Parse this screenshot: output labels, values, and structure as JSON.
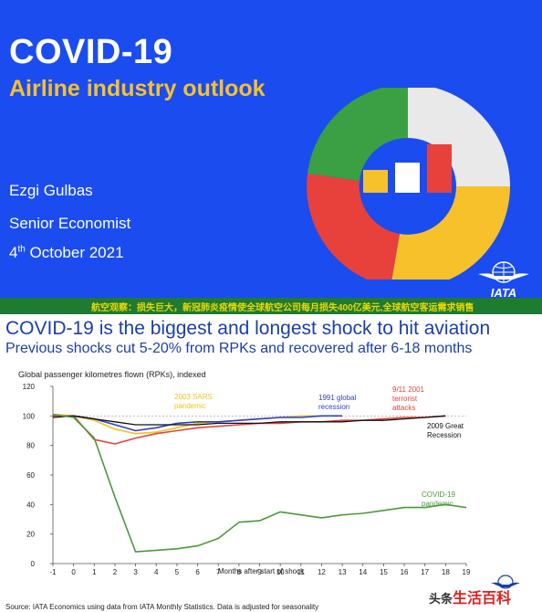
{
  "slide": {
    "title": "COVID-19",
    "subtitle": "Airline industry outlook",
    "author": "Ezgi Gulbas",
    "role": "Senior Economist",
    "date_day": "4",
    "date_suffix": "th",
    "date_rest": " October 2021",
    "logo_text": "IATA",
    "colors": {
      "background": "#1a4cf0",
      "accent": "#f6c12b"
    }
  },
  "banner": {
    "text": "航空观察：损失巨大，新冠肺炎疫情使全球航空公司每月损失400亿美元,全球航空客运需求销售"
  },
  "heading": "COVID-19 is the biggest and longest shock to hit aviation",
  "subheading": "Previous shocks cut 5-20% from RPKs and recovered after 6-18 months",
  "source": "Source: IATA Economics using data from IATA Monthly Statistics. Data is adjusted for seasonality",
  "watermark": {
    "part1": "头条",
    "part2": "生活百科"
  },
  "chart_data": {
    "type": "line",
    "ylabel": "Global passenger kilometres flown (RPKs), indexed",
    "xlabel": "Months after start of shock",
    "ylim": [
      0,
      120
    ],
    "xlim": [
      -1,
      19
    ],
    "yticks": [
      0,
      20,
      40,
      60,
      80,
      100,
      120
    ],
    "xticks": [
      -1,
      0,
      1,
      2,
      3,
      4,
      5,
      6,
      7,
      8,
      9,
      10,
      11,
      12,
      13,
      14,
      15,
      16,
      17,
      18,
      19
    ],
    "series": [
      {
        "name": "2003 SARS pandemic",
        "label_lines": [
          "2003 SARS",
          "pandemic"
        ],
        "color": "#f0c419",
        "x": [
          -1,
          0,
          1,
          2,
          3,
          4,
          5,
          6,
          7,
          8,
          9,
          10,
          11,
          12
        ],
        "y": [
          101,
          100,
          97,
          91,
          88,
          89,
          92,
          95,
          96,
          97,
          98,
          99,
          100,
          100
        ]
      },
      {
        "name": "1991 global recession",
        "label_lines": [
          "1991 global",
          "recession"
        ],
        "color": "#2f3fc9",
        "x": [
          -1,
          0,
          1,
          2,
          3,
          4,
          5,
          6,
          7,
          8,
          9,
          10,
          11,
          12,
          13
        ],
        "y": [
          100,
          100,
          98,
          94,
          90,
          92,
          95,
          96,
          96,
          97,
          98,
          99,
          99,
          100,
          100
        ]
      },
      {
        "name": "9/11 2001 terrorist attacks",
        "label_lines": [
          "9/11 2001",
          "terrorist",
          "attacks"
        ],
        "color": "#e0453a",
        "x": [
          -1,
          0,
          1,
          2,
          3,
          4,
          5,
          6,
          7,
          8,
          9,
          10,
          11,
          12,
          13,
          14,
          15,
          16,
          17,
          18
        ],
        "y": [
          100,
          100,
          84,
          81,
          85,
          88,
          90,
          92,
          93,
          94,
          95,
          95,
          96,
          96,
          97,
          97,
          98,
          99,
          99,
          100
        ]
      },
      {
        "name": "2009 Great Recession",
        "label_lines": [
          "2009 Great",
          "Recession"
        ],
        "color": "#111111",
        "x": [
          -1,
          0,
          1,
          2,
          3,
          4,
          5,
          6,
          7,
          8,
          9,
          10,
          11,
          12,
          13,
          14,
          15,
          16,
          17,
          18
        ],
        "y": [
          99,
          100,
          98,
          96,
          94,
          94,
          94,
          94,
          95,
          95,
          95,
          96,
          96,
          96,
          96,
          97,
          97,
          98,
          99,
          100
        ]
      },
      {
        "name": "COVID-19 pandemic",
        "label_lines": [
          "COVID-19",
          "pandemic"
        ],
        "color": "#4a9a3a",
        "x": [
          -1,
          0,
          1,
          2,
          3,
          4,
          5,
          6,
          7,
          8,
          9,
          10,
          11,
          12,
          13,
          14,
          15,
          16,
          17,
          18,
          19
        ],
        "y": [
          101,
          99,
          85,
          45,
          8,
          9,
          10,
          12,
          17,
          28,
          29,
          35,
          33,
          31,
          33,
          34,
          36,
          38,
          38,
          40,
          38
        ]
      }
    ]
  }
}
